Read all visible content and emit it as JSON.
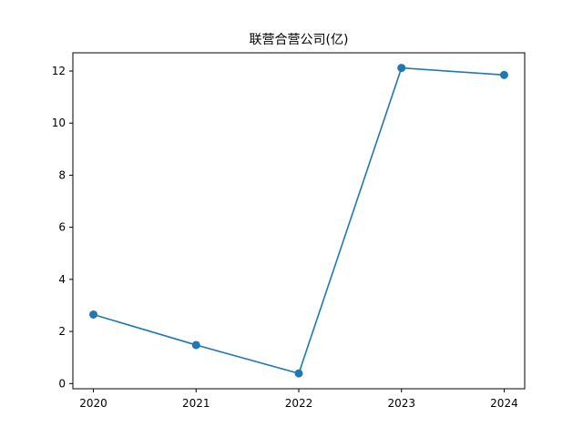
{
  "chart_data": {
    "type": "line",
    "title": "联营合营公司(亿)",
    "xlabel": "",
    "ylabel": "",
    "x": [
      "2020",
      "2021",
      "2022",
      "2023",
      "2024"
    ],
    "series": [
      {
        "values": [
          2.65,
          1.48,
          0.39,
          12.12,
          11.85
        ],
        "color": "#1f77b4",
        "marker": "circle"
      }
    ],
    "xlim": [
      2019.8,
      2024.2
    ],
    "ylim": [
      -0.2,
      12.7
    ],
    "yticks": [
      0,
      2,
      4,
      6,
      8,
      10,
      12
    ],
    "yticklabels": [
      "0",
      "2",
      "4",
      "6",
      "8",
      "10",
      "12"
    ],
    "grid": false,
    "legend": "none"
  },
  "colors": {
    "axes": "#000000",
    "background": "#ffffff"
  }
}
